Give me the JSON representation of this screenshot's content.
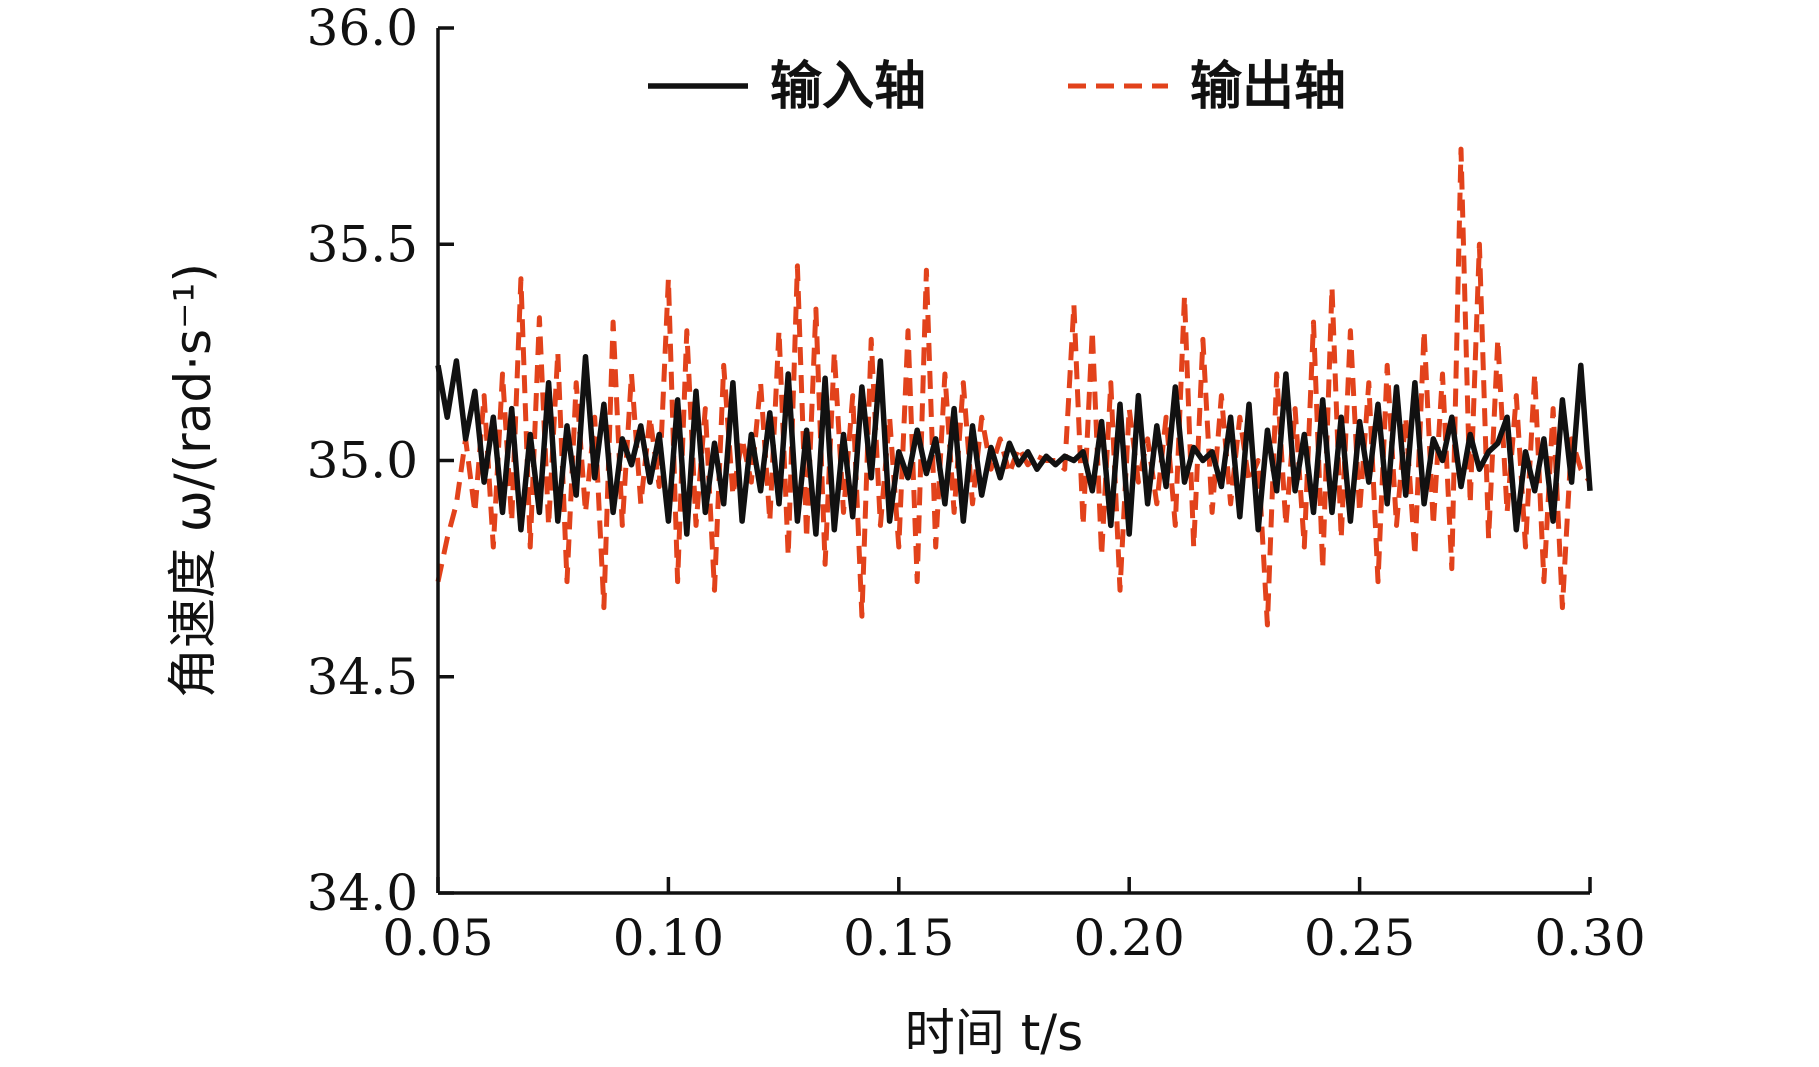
{
  "chart_data": {
    "type": "line",
    "xlabel": "时间 t/s",
    "ylabel": "角速度 ω/(rad·s⁻¹)",
    "xlim": [
      0.05,
      0.3
    ],
    "ylim": [
      34.0,
      36.0
    ],
    "x_ticks": [
      "0.05",
      "0.10",
      "0.15",
      "0.20",
      "0.25",
      "0.30"
    ],
    "y_ticks": [
      "34.0",
      "34.5",
      "35.0",
      "35.5",
      "36.0"
    ],
    "legend_position": "top",
    "grid": false,
    "series": [
      {
        "name": "输入轴",
        "color": "#111111",
        "style": "solid",
        "x": [
          0.05,
          0.052,
          0.054,
          0.056,
          0.058,
          0.06,
          0.062,
          0.064,
          0.066,
          0.068,
          0.07,
          0.072,
          0.074,
          0.076,
          0.078,
          0.08,
          0.082,
          0.084,
          0.086,
          0.088,
          0.09,
          0.092,
          0.094,
          0.096,
          0.098,
          0.1,
          0.102,
          0.104,
          0.106,
          0.108,
          0.11,
          0.112,
          0.114,
          0.116,
          0.118,
          0.12,
          0.122,
          0.124,
          0.126,
          0.128,
          0.13,
          0.132,
          0.134,
          0.136,
          0.138,
          0.14,
          0.142,
          0.144,
          0.146,
          0.148,
          0.15,
          0.152,
          0.154,
          0.156,
          0.158,
          0.16,
          0.162,
          0.164,
          0.166,
          0.168,
          0.17,
          0.172,
          0.174,
          0.176,
          0.178,
          0.18,
          0.182,
          0.184,
          0.186,
          0.188,
          0.19,
          0.192,
          0.194,
          0.196,
          0.198,
          0.2,
          0.202,
          0.204,
          0.206,
          0.208,
          0.21,
          0.212,
          0.214,
          0.216,
          0.218,
          0.22,
          0.222,
          0.224,
          0.226,
          0.228,
          0.23,
          0.232,
          0.234,
          0.236,
          0.238,
          0.24,
          0.242,
          0.244,
          0.246,
          0.248,
          0.25,
          0.252,
          0.254,
          0.256,
          0.258,
          0.26,
          0.262,
          0.264,
          0.266,
          0.268,
          0.27,
          0.272,
          0.274,
          0.276,
          0.278,
          0.28,
          0.282,
          0.284,
          0.286,
          0.288,
          0.29,
          0.292,
          0.294,
          0.296,
          0.298,
          0.3
        ],
        "values": [
          35.22,
          35.1,
          35.23,
          35.05,
          35.16,
          34.95,
          35.1,
          34.88,
          35.12,
          34.84,
          35.06,
          34.88,
          35.18,
          34.86,
          35.08,
          34.92,
          35.24,
          34.96,
          35.13,
          34.88,
          35.05,
          34.99,
          35.08,
          34.95,
          35.06,
          34.86,
          35.14,
          34.83,
          35.16,
          34.88,
          35.04,
          34.9,
          35.18,
          34.86,
          35.06,
          34.93,
          35.11,
          34.9,
          35.2,
          34.86,
          35.07,
          34.83,
          35.19,
          34.84,
          35.06,
          34.87,
          35.17,
          34.96,
          35.23,
          34.86,
          35.02,
          34.96,
          35.07,
          34.97,
          35.05,
          34.9,
          35.12,
          34.86,
          35.08,
          34.92,
          35.03,
          34.96,
          35.04,
          34.99,
          35.02,
          34.98,
          35.01,
          34.99,
          35.01,
          35.0,
          35.02,
          34.93,
          35.09,
          34.85,
          35.13,
          34.83,
          35.15,
          34.9,
          35.08,
          34.94,
          35.17,
          34.95,
          35.03,
          35.0,
          35.02,
          34.94,
          35.1,
          34.87,
          35.13,
          34.84,
          35.07,
          34.93,
          35.2,
          34.93,
          35.06,
          34.88,
          35.14,
          34.88,
          35.1,
          34.86,
          35.09,
          34.95,
          35.13,
          34.9,
          35.17,
          34.92,
          35.18,
          34.9,
          35.05,
          35.0,
          35.1,
          34.94,
          35.06,
          34.98,
          35.02,
          35.04,
          35.1,
          34.84,
          35.02,
          34.93,
          35.05,
          34.86,
          35.14,
          34.95,
          35.22,
          34.93
        ]
      },
      {
        "name": "输出轴",
        "color": "#E2421B",
        "style": "dashed",
        "x": [
          0.05,
          0.052,
          0.054,
          0.056,
          0.058,
          0.06,
          0.062,
          0.064,
          0.066,
          0.068,
          0.07,
          0.072,
          0.074,
          0.076,
          0.078,
          0.08,
          0.082,
          0.084,
          0.086,
          0.088,
          0.09,
          0.092,
          0.094,
          0.096,
          0.098,
          0.1,
          0.102,
          0.104,
          0.106,
          0.108,
          0.11,
          0.112,
          0.114,
          0.116,
          0.118,
          0.12,
          0.122,
          0.124,
          0.126,
          0.128,
          0.13,
          0.132,
          0.134,
          0.136,
          0.138,
          0.14,
          0.142,
          0.144,
          0.146,
          0.148,
          0.15,
          0.152,
          0.154,
          0.156,
          0.158,
          0.16,
          0.162,
          0.164,
          0.166,
          0.168,
          0.17,
          0.172,
          0.174,
          0.176,
          0.178,
          0.18,
          0.182,
          0.184,
          0.186,
          0.188,
          0.19,
          0.192,
          0.194,
          0.196,
          0.198,
          0.2,
          0.202,
          0.204,
          0.206,
          0.208,
          0.21,
          0.212,
          0.214,
          0.216,
          0.218,
          0.22,
          0.222,
          0.224,
          0.226,
          0.228,
          0.23,
          0.232,
          0.234,
          0.236,
          0.238,
          0.24,
          0.242,
          0.244,
          0.246,
          0.248,
          0.25,
          0.252,
          0.254,
          0.256,
          0.258,
          0.26,
          0.262,
          0.264,
          0.266,
          0.268,
          0.27,
          0.272,
          0.274,
          0.276,
          0.278,
          0.28,
          0.282,
          0.284,
          0.286,
          0.288,
          0.29,
          0.292,
          0.294,
          0.296,
          0.298,
          0.3
        ],
        "values": [
          34.72,
          34.82,
          34.9,
          35.05,
          34.88,
          35.15,
          34.8,
          35.2,
          34.86,
          35.42,
          34.8,
          35.33,
          34.85,
          35.25,
          34.72,
          35.18,
          34.88,
          35.1,
          34.66,
          35.32,
          34.85,
          35.2,
          34.9,
          35.1,
          34.94,
          35.42,
          34.72,
          35.3,
          34.85,
          35.12,
          34.7,
          35.22,
          34.92,
          35.05,
          34.95,
          35.18,
          34.86,
          35.3,
          34.78,
          35.45,
          34.82,
          35.35,
          34.76,
          35.25,
          34.88,
          35.15,
          34.64,
          35.28,
          34.85,
          35.1,
          34.8,
          35.3,
          34.72,
          35.44,
          34.8,
          35.2,
          34.88,
          35.18,
          34.9,
          35.1,
          34.98,
          35.05,
          34.97,
          35.03,
          34.99,
          35.01,
          35.0,
          35.0,
          34.98,
          35.36,
          34.85,
          35.3,
          34.78,
          35.18,
          34.7,
          35.12,
          34.95,
          35.05,
          34.9,
          35.1,
          34.85,
          35.38,
          34.8,
          35.28,
          34.88,
          35.15,
          34.9,
          35.1,
          34.95,
          35.0,
          34.62,
          35.2,
          34.85,
          35.12,
          34.8,
          35.32,
          34.75,
          35.4,
          34.82,
          35.3,
          34.88,
          35.18,
          34.72,
          35.22,
          34.85,
          35.1,
          34.78,
          35.3,
          34.85,
          35.2,
          34.75,
          35.72,
          34.9,
          35.5,
          34.82,
          35.28,
          34.88,
          35.15,
          34.8,
          35.2,
          34.72,
          35.12,
          34.66,
          35.05,
          34.98,
          34.95
        ]
      }
    ]
  }
}
